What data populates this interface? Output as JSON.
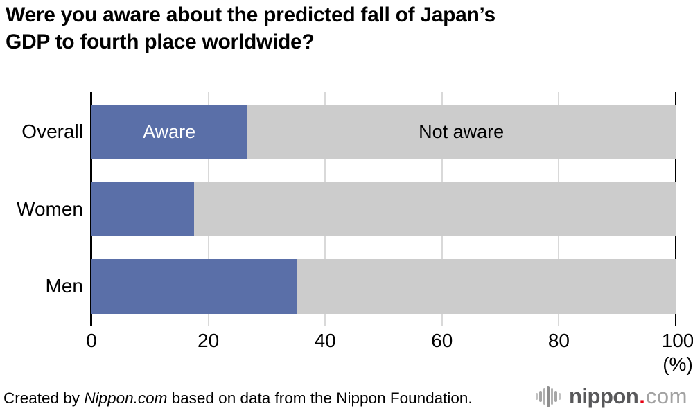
{
  "title": {
    "lines": [
      "Were you aware about the predicted fall of Japan’s",
      "GDP to fourth place worldwide?"
    ],
    "full": "Were you aware about the predicted fall of Japan’s GDP to fourth place worldwide?"
  },
  "chart_data": {
    "type": "bar",
    "orientation": "horizontal",
    "stacked": true,
    "title": "Were you aware about the predicted fall of Japan’s GDP to fourth place worldwide?",
    "categories": [
      "Overall",
      "Women",
      "Men"
    ],
    "series": [
      {
        "name": "Aware",
        "values": [
          26.6,
          17.5,
          35.1
        ],
        "color": "#5a6fa8",
        "label_color": "#ffffff"
      },
      {
        "name": "Not aware",
        "values": [
          73.4,
          82.5,
          64.9
        ],
        "color": "#cccccc",
        "label_color": "#000000"
      }
    ],
    "xlim": [
      0,
      100
    ],
    "x_ticks": [
      "0",
      "20",
      "40",
      "60",
      "80",
      "100"
    ],
    "x_unit": "(%)",
    "grid_on": true,
    "grid_color": "#d9d9d9",
    "axis_color": "#000000",
    "legend": "labels drawn inside first bar"
  },
  "footer": {
    "prefix": "Created by ",
    "source_italic": "Nippon.com",
    "suffix": " based on data from the Nippon Foundation."
  },
  "logo": {
    "name": "nippon",
    "dot": ".",
    "tld": "com",
    "name_color": "#58585a",
    "dot_color": "#e60012",
    "tld_color": "#a2a2a2",
    "icon_color": "#a0a0a0"
  }
}
